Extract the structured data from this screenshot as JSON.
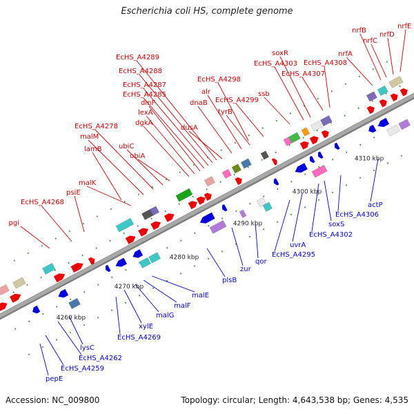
{
  "title": "Escherichia coli HS, complete genome",
  "footer": {
    "accession": "Accession: NC_009800",
    "summary": "Topology: circular; Length: 4,643,538 bp; Genes: 4,535"
  },
  "colors": {
    "forward_label": "#cc0000",
    "reverse_label": "#0000cc",
    "backbone": "#a8a8a8",
    "tick": "#2a8a2a",
    "forward_gene": "#ee0000",
    "reverse_gene": "#0000dd",
    "cog_palette": [
      "#3fc6c6",
      "#7a6ab8",
      "#e8e8e8",
      "#cfc7a0",
      "#ff6bbd",
      "#44b84a",
      "#ff9900",
      "#ee55cc",
      "#4a78a8",
      "#e9a3a3",
      "#6a8a1a",
      "#555555",
      "#b07ad8",
      "#1aa31a"
    ]
  },
  "scale_labels": [
    "4260 kbp",
    "4270 kbp",
    "4280 kbp",
    "4290 kbp",
    "4300 kbp",
    "4310 kbp"
  ],
  "forward_labels": [
    "pgi",
    "EcHS_A4268",
    "psiE",
    "malK",
    "lamB",
    "malM",
    "EcHS_A4278",
    "ubiC",
    "ubiA",
    "dgkA",
    "lexA",
    "dinF",
    "EcHS_A4285",
    "EcHS_A4287",
    "EcHS_A4288",
    "EcHS_A4289",
    "dusA",
    "dnaB",
    "alr",
    "tyrB",
    "EcHS_A4299",
    "EcHS_A4298",
    "ssb",
    "soxR",
    "EcHS_A4303",
    "EcHS_A4307",
    "EcHS_A4308",
    "nrfA",
    "nrfB",
    "nrfC",
    "nrfD",
    "nrfE"
  ],
  "reverse_labels": [
    "pepE",
    "EcHS_A4259",
    "EcHS_A4262",
    "lysC",
    "EcHS_A4269",
    "xylE",
    "malG",
    "malF",
    "malE",
    "plsB",
    "zur",
    "qor",
    "EcHS_A4295",
    "uvrA",
    "EcHS_A4302",
    "soxS",
    "EcHS_A4306",
    "actP"
  ]
}
